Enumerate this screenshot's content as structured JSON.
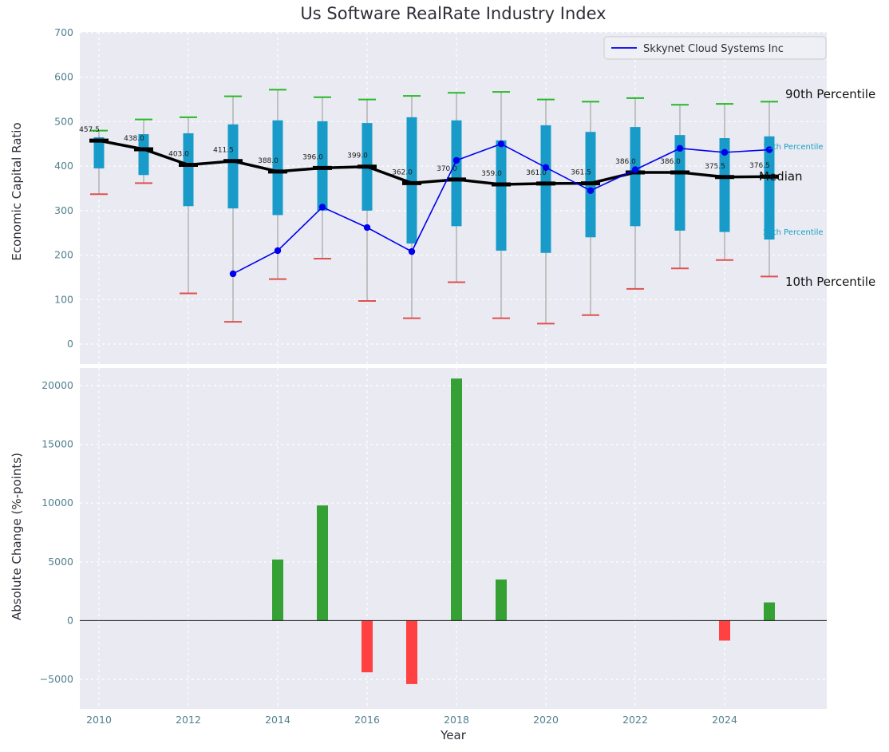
{
  "chart_data": [
    {
      "type": "boxplot",
      "title": "Us Software RealRate Industry Index",
      "ylabel": "Economic Capital Ratio",
      "ylim": [
        -45,
        700
      ],
      "yticks": [
        0,
        100,
        200,
        300,
        400,
        500,
        600,
        700
      ],
      "grid": true,
      "legend_position": "upper right",
      "x": [
        2010,
        2011,
        2012,
        2013,
        2014,
        2015,
        2016,
        2017,
        2018,
        2019,
        2020,
        2021,
        2022,
        2023,
        2024,
        2025
      ],
      "series": [
        {
          "name": "90th Percentile",
          "values": [
            480,
            505,
            510,
            557,
            572,
            555,
            550,
            558,
            565,
            567,
            550,
            545,
            553,
            538,
            540,
            545
          ]
        },
        {
          "name": "75th Percentile",
          "values": [
            465,
            472,
            474,
            494,
            503,
            501,
            497,
            510,
            503,
            458,
            492,
            477,
            488,
            470,
            463,
            467
          ]
        },
        {
          "name": "Median",
          "values": [
            457.5,
            438.0,
            403.0,
            411.5,
            388.0,
            396.0,
            399.0,
            362.0,
            370.0,
            359.0,
            361.0,
            361.5,
            386.0,
            386.0,
            375.5,
            376.5
          ]
        },
        {
          "name": "25th Percentile",
          "values": [
            395,
            380,
            310,
            305,
            290,
            300,
            300,
            226,
            265,
            210,
            205,
            240,
            265,
            255,
            252,
            235
          ]
        },
        {
          "name": "10th Percentile",
          "values": [
            337,
            362,
            114,
            50,
            146,
            192,
            97,
            58,
            139,
            58,
            46,
            65,
            124,
            170,
            189,
            152
          ]
        }
      ],
      "median_labels": [
        "457.5",
        "438.0",
        "403.0",
        "411.5",
        "388.0",
        "396.0",
        "399.0",
        "362.0",
        "370.0",
        "359.0",
        "361.0",
        "361.5",
        "386.0",
        "386.0",
        "375.5",
        "376.5"
      ],
      "company_line": {
        "name": "Skkynet Cloud Systems Inc",
        "x": [
          2013,
          2014,
          2015,
          2016,
          2017,
          2018,
          2019,
          2020,
          2021,
          2022,
          2023,
          2024,
          2025
        ],
        "y": [
          158,
          210,
          308,
          262,
          208,
          413,
          450,
          397,
          345,
          392,
          440,
          431,
          437
        ]
      },
      "legend": {
        "label": "Skkynet Cloud Systems Inc"
      },
      "right_labels": [
        {
          "text": "90th Percentile",
          "style": "large"
        },
        {
          "text": "75th Percentile",
          "style": "small"
        },
        {
          "text": "Median",
          "style": "large"
        },
        {
          "text": "25th Percentile",
          "style": "small"
        },
        {
          "text": "10th Percentile",
          "style": "large"
        }
      ]
    },
    {
      "type": "bar",
      "xlabel": "Year",
      "ylabel": "Absolute Change (%-points)",
      "ylim": [
        -7500,
        21500
      ],
      "yticks": [
        -5000,
        0,
        5000,
        10000,
        15000,
        20000
      ],
      "ytick_labels": [
        "−5000",
        "0",
        "5000",
        "10000",
        "15000",
        "20000"
      ],
      "xticks": [
        2010,
        2012,
        2014,
        2016,
        2018,
        2020,
        2022,
        2024
      ],
      "x": [
        2010,
        2011,
        2012,
        2013,
        2014,
        2015,
        2016,
        2017,
        2018,
        2019,
        2020,
        2021,
        2022,
        2023,
        2024,
        2025
      ],
      "values": [
        0,
        0,
        0,
        0,
        5200,
        9800,
        -4400,
        -5400,
        20600,
        3500,
        0,
        0,
        0,
        0,
        -1700,
        1550
      ],
      "grid": true
    }
  ],
  "colors": {
    "panel_background": "#eaebf2",
    "grid": "#ffffff",
    "box": "#189bc9",
    "cap_top": "#27b827",
    "cap_bottom": "#e04f4f",
    "whisker": "#aaaaaa",
    "median": "#000000",
    "company_line": "#0000ee",
    "bar_positive": "#35a135",
    "bar_negative": "#ff4141",
    "tick_label": "#53808f",
    "text": "#2e2e38",
    "small_label": "#18a1c6",
    "legend_background": "#eef0f6",
    "legend_border": "#cccccc",
    "zero_line": "#111111"
  }
}
